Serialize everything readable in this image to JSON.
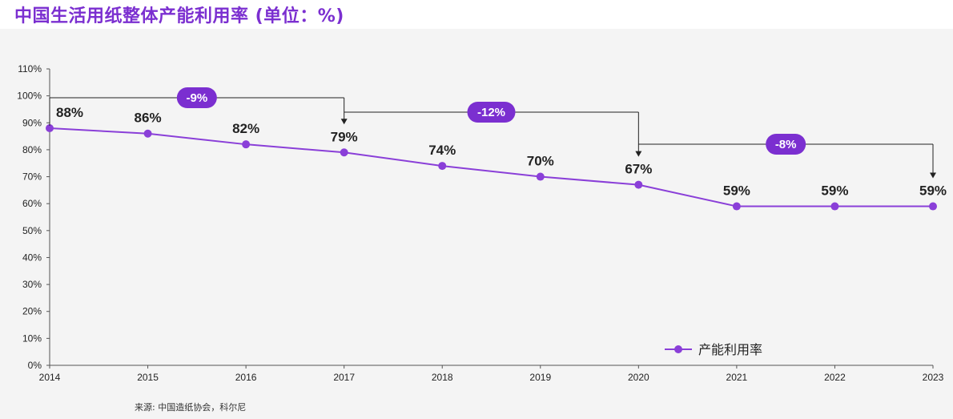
{
  "title": "中国生活用纸整体产能利用率 (单位：%)",
  "source": "来源: 中国造纸协会，科尔尼",
  "colors": {
    "series": "#8a3fd8",
    "badge": "#7b2fd0",
    "title": "#7b2fd0",
    "bracket": "#222222"
  },
  "chart_data": {
    "type": "line",
    "title": "中国生活用纸整体产能利用率 (单位：%)",
    "x": [
      "2014",
      "2015",
      "2016",
      "2017",
      "2018",
      "2019",
      "2020",
      "2021",
      "2022",
      "2023"
    ],
    "series": [
      {
        "name": "产能利用率",
        "values": [
          88,
          86,
          82,
          79,
          74,
          70,
          67,
          59,
          59,
          59
        ]
      }
    ],
    "data_labels": [
      "88%",
      "86%",
      "82%",
      "79%",
      "74%",
      "70%",
      "67%",
      "59%",
      "59%",
      "59%"
    ],
    "yticks": [
      "0%",
      "10%",
      "20%",
      "30%",
      "40%",
      "50%",
      "60%",
      "70%",
      "80%",
      "90%",
      "100%",
      "110%"
    ],
    "ylim": [
      0,
      110
    ],
    "grid": false,
    "legend": "bottom-right",
    "annotations": [
      {
        "from": "2014",
        "to": "2017",
        "label": "-9%"
      },
      {
        "from": "2017",
        "to": "2020",
        "label": "-12%"
      },
      {
        "from": "2020",
        "to": "2023",
        "label": "-8%"
      }
    ]
  }
}
